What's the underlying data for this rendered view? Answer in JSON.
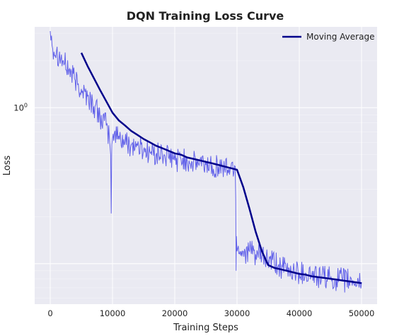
{
  "chart_data": {
    "type": "line",
    "title": "DQN Training Loss Curve",
    "xlabel": "Training Steps",
    "ylabel": "Loss",
    "xlim": [
      -2500,
      52500
    ],
    "ylim": [
      0.055,
      3.3
    ],
    "yscale": "log",
    "grid": true,
    "background": "#EAEAF2",
    "legend_position": "top-right",
    "x_ticks": [
      {
        "value": 0,
        "label": "0"
      },
      {
        "value": 10000,
        "label": "10000"
      },
      {
        "value": 20000,
        "label": "20000"
      },
      {
        "value": 30000,
        "label": "30000"
      },
      {
        "value": 40000,
        "label": "40000"
      },
      {
        "value": 50000,
        "label": "50000"
      }
    ],
    "y_ticks": [
      {
        "value": 1,
        "label_base": "10",
        "label_exp": "0"
      }
    ],
    "series": [
      {
        "style": "raw",
        "color": "#4A4AE8",
        "x": [
          0,
          100,
          200,
          300,
          1000,
          2000,
          3000,
          4000,
          5000,
          6000,
          7000,
          8000,
          9000,
          9500,
          9700,
          9800,
          9900,
          10100,
          11000,
          12000,
          13000,
          14000,
          15000,
          16000,
          17000,
          18000,
          19000,
          20000,
          21000,
          22000,
          23000,
          24000,
          25000,
          26000,
          27000,
          28000,
          29000,
          29700,
          29800,
          29850,
          29900,
          30000,
          30200,
          30500,
          31000,
          32000,
          33000,
          34000,
          35000,
          36000,
          37000,
          38000,
          39000,
          40000,
          41000,
          42000,
          43000,
          44000,
          45000,
          46000,
          47000,
          48000,
          49000,
          50000
        ],
        "y": [
          3.1,
          2.7,
          2.9,
          2.5,
          2.3,
          2.0,
          1.75,
          1.5,
          1.32,
          1.18,
          1.02,
          0.88,
          0.77,
          0.64,
          0.5,
          0.21,
          0.58,
          0.68,
          0.66,
          0.6,
          0.58,
          0.57,
          0.54,
          0.52,
          0.5,
          0.5,
          0.48,
          0.46,
          0.47,
          0.46,
          0.44,
          0.44,
          0.43,
          0.43,
          0.42,
          0.41,
          0.41,
          0.42,
          0.26,
          0.09,
          0.15,
          0.12,
          0.13,
          0.12,
          0.12,
          0.12,
          0.115,
          0.11,
          0.105,
          0.1,
          0.095,
          0.09,
          0.09,
          0.088,
          0.087,
          0.085,
          0.082,
          0.082,
          0.08,
          0.08,
          0.078,
          0.078,
          0.076,
          0.076
        ]
      },
      {
        "name": "Moving Average",
        "style": "smooth",
        "color": "#00008B",
        "x": [
          5000,
          6000,
          7000,
          8000,
          9000,
          10000,
          11000,
          12000,
          13000,
          14000,
          15000,
          16000,
          17000,
          18000,
          19000,
          20000,
          21000,
          22000,
          23000,
          24000,
          25000,
          26000,
          27000,
          28000,
          29000,
          30000,
          31000,
          32000,
          33000,
          34000,
          35000,
          36000,
          37000,
          38000,
          39000,
          40000,
          41000,
          42000,
          43000,
          44000,
          45000,
          46000,
          47000,
          48000,
          49000,
          50000
        ],
        "y": [
          2.25,
          1.85,
          1.55,
          1.3,
          1.1,
          0.93,
          0.83,
          0.77,
          0.71,
          0.67,
          0.63,
          0.6,
          0.57,
          0.55,
          0.53,
          0.51,
          0.5,
          0.48,
          0.47,
          0.46,
          0.45,
          0.44,
          0.43,
          0.42,
          0.41,
          0.4,
          0.31,
          0.225,
          0.16,
          0.12,
          0.098,
          0.094,
          0.092,
          0.09,
          0.088,
          0.086,
          0.085,
          0.083,
          0.082,
          0.081,
          0.08,
          0.079,
          0.078,
          0.077,
          0.076,
          0.075
        ]
      }
    ]
  }
}
